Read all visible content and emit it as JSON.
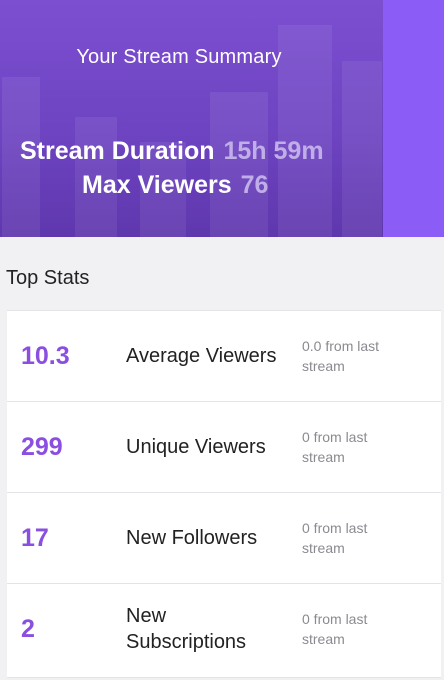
{
  "summary": {
    "title": "Your Stream Summary",
    "duration_label": "Stream Duration",
    "duration_value": "15h 59m",
    "viewers_label": "Max Viewers",
    "viewers_value": "76"
  },
  "top_stats": {
    "heading": "Top Stats",
    "rows": [
      {
        "value": "10.3",
        "label": "Average Viewers",
        "delta": "0.0 from last stream"
      },
      {
        "value": "299",
        "label": "Unique Viewers",
        "delta": "0 from last stream"
      },
      {
        "value": "17",
        "label": "New Followers",
        "delta": "0 from last stream"
      },
      {
        "value": "2",
        "label": "New Subscriptions",
        "delta": "0 from last stream"
      }
    ]
  },
  "colors": {
    "hero": "#6e44c2",
    "accent_strip": "#8b5cf6",
    "stat_value": "#8a4ee0",
    "delta_text": "#8a8a90"
  }
}
